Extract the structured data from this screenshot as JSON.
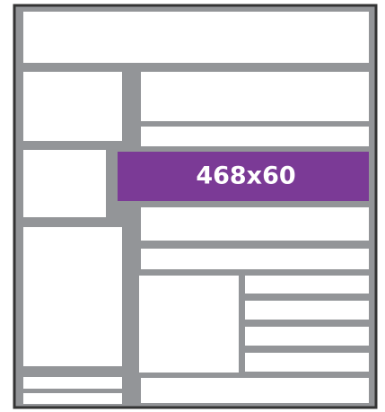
{
  "ad": {
    "label": "468x60"
  }
}
